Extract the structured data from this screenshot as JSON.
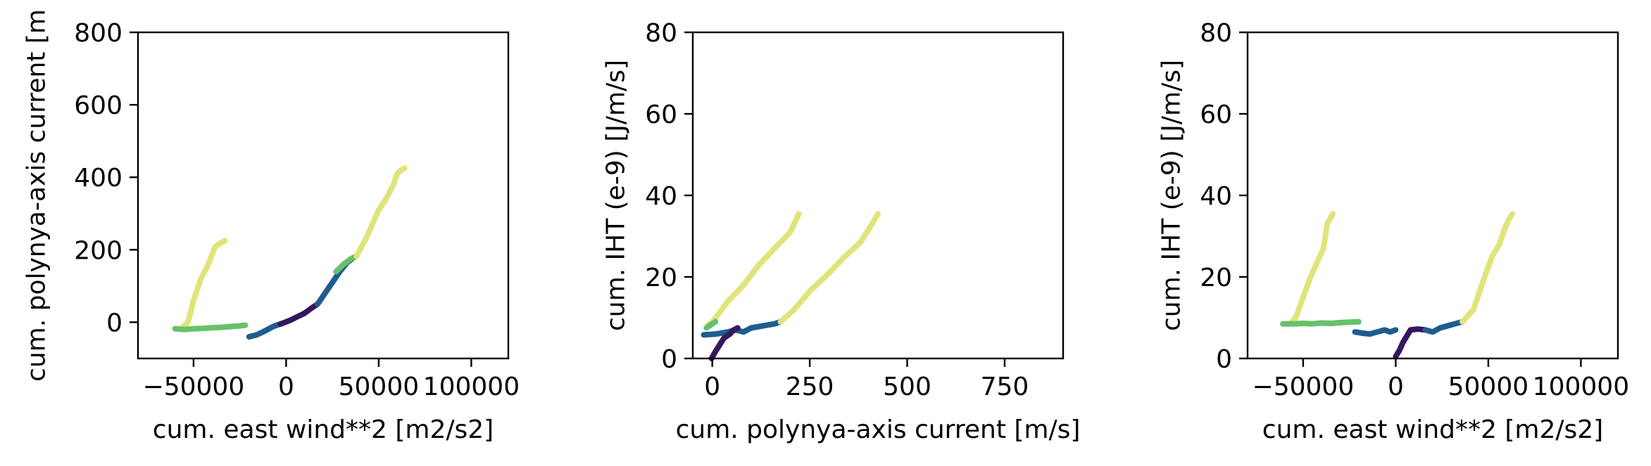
{
  "colors": {
    "dark_purple": "#35175e",
    "teal_blue": "#1f5c8f",
    "green": "#67c16a",
    "yellow": "#e1e47a"
  },
  "chart_data": [
    {
      "type": "line",
      "xlabel": "cum. east wind**2 [m2/s2]",
      "ylabel": "cum. polynya-axis current [m",
      "xlim": [
        -80000,
        120000
      ],
      "ylim": [
        -100,
        800
      ],
      "xticks": [
        -50000,
        0,
        50000,
        100000
      ],
      "xtick_labels": [
        "−50000",
        "0",
        "50000",
        "100000"
      ],
      "yticks": [
        0,
        200,
        400,
        600,
        800
      ],
      "ytick_labels": [
        "0",
        "200",
        "400",
        "600",
        "800"
      ],
      "series": [
        {
          "color": "#e1e47a",
          "x": [
            -57000,
            -53000,
            -50000,
            -46000,
            -42000,
            -39000,
            -38000,
            -35000,
            -33000
          ],
          "y": [
            -20,
            0,
            60,
            120,
            160,
            200,
            210,
            220,
            225
          ]
        },
        {
          "color": "#67c16a",
          "x": [
            -60000,
            -55000,
            -50000,
            -45000,
            -40000,
            -35000,
            -30000,
            -25000,
            -22000
          ],
          "y": [
            -18,
            -20,
            -18,
            -17,
            -15,
            -14,
            -12,
            -10,
            -8
          ]
        },
        {
          "color": "#1f5c8f",
          "x": [
            -20000,
            -16000,
            -13000,
            -10000,
            -7000,
            -5000,
            -3000
          ],
          "y": [
            -40,
            -35,
            -28,
            -20,
            -12,
            -8,
            -5
          ]
        },
        {
          "color": "#35175e",
          "x": [
            -3000,
            2000,
            6000,
            10000,
            14000,
            17000
          ],
          "y": [
            -5,
            5,
            15,
            25,
            40,
            50
          ]
        },
        {
          "color": "#1f5c8f",
          "x": [
            17000,
            21000,
            25000,
            29000,
            33000,
            37000
          ],
          "y": [
            50,
            80,
            110,
            140,
            165,
            180
          ]
        },
        {
          "color": "#67c16a",
          "x": [
            27000,
            31000,
            35000,
            38000
          ],
          "y": [
            140,
            160,
            175,
            182
          ]
        },
        {
          "color": "#e1e47a",
          "x": [
            38000,
            44000,
            50000,
            54000,
            58000,
            60000,
            62000,
            64000
          ],
          "y": [
            182,
            240,
            310,
            340,
            380,
            410,
            420,
            425
          ]
        }
      ]
    },
    {
      "type": "line",
      "xlabel": "cum. polynya-axis current [m/s]",
      "ylabel": "cum. IHT (e-9) [J/m/s]",
      "xlim": [
        -50,
        900
      ],
      "ylim": [
        0,
        80
      ],
      "xticks": [
        0,
        250,
        500,
        750
      ],
      "xtick_labels": [
        "0",
        "250",
        "500",
        "750"
      ],
      "yticks": [
        0,
        20,
        40,
        60,
        80
      ],
      "ytick_labels": [
        "0",
        "20",
        "40",
        "60",
        "80"
      ],
      "series": [
        {
          "color": "#e1e47a",
          "x": [
            -12,
            5,
            40,
            80,
            120,
            160,
            200,
            222
          ],
          "y": [
            8,
            9.5,
            14,
            18,
            23,
            27,
            31,
            35.5
          ]
        },
        {
          "color": "#67c16a",
          "x": [
            -15,
            0,
            8
          ],
          "y": [
            7.5,
            8.5,
            9
          ]
        },
        {
          "color": "#1f5c8f",
          "x": [
            -22,
            10,
            40,
            60,
            80,
            100,
            130,
            160,
            175
          ],
          "y": [
            5.8,
            6,
            6.5,
            7,
            6.5,
            7.5,
            8,
            8.5,
            9
          ]
        },
        {
          "color": "#35175e",
          "x": [
            -2,
            10,
            20,
            30,
            45,
            55,
            65
          ],
          "y": [
            0,
            2,
            3.5,
            5,
            6,
            7,
            7.5
          ]
        },
        {
          "color": "#e1e47a",
          "x": [
            175,
            210,
            250,
            300,
            340,
            380,
            410,
            425
          ],
          "y": [
            9,
            12,
            16.5,
            21,
            25,
            28.5,
            33,
            35.5
          ]
        }
      ]
    },
    {
      "type": "line",
      "xlabel": "cum. east wind**2 [m2/s2]",
      "ylabel": "cum. IHT (e-9) [J/m/s]",
      "xlim": [
        -80000,
        120000
      ],
      "ylim": [
        0,
        80
      ],
      "xticks": [
        -50000,
        0,
        50000,
        100000
      ],
      "xtick_labels": [
        "−50000",
        "0",
        "50000",
        "100000"
      ],
      "yticks": [
        0,
        20,
        40,
        60,
        80
      ],
      "ytick_labels": [
        "0",
        "20",
        "40",
        "60",
        "80"
      ],
      "series": [
        {
          "color": "#e1e47a",
          "x": [
            -57000,
            -54000,
            -50000,
            -46000,
            -42000,
            -39000,
            -37000,
            -34000
          ],
          "y": [
            8.5,
            10,
            15,
            20,
            24,
            27,
            33,
            35.5
          ]
        },
        {
          "color": "#67c16a",
          "x": [
            -61000,
            -55000,
            -50000,
            -45000,
            -40000,
            -35000,
            -30000,
            -25000,
            -20000
          ],
          "y": [
            8.5,
            8.5,
            8.6,
            8.5,
            8.7,
            8.6,
            8.8,
            8.9,
            9
          ]
        },
        {
          "color": "#1f5c8f",
          "x": [
            -22000,
            -18000,
            -14000,
            -10000,
            -6000,
            -3000,
            0
          ],
          "y": [
            6.5,
            6.2,
            6,
            6.5,
            7,
            6.5,
            7
          ]
        },
        {
          "color": "#35175e",
          "x": [
            0,
            2000,
            4000,
            6000,
            8000,
            12000,
            16000
          ],
          "y": [
            0.5,
            2,
            4,
            5.5,
            7,
            7.2,
            7
          ]
        },
        {
          "color": "#1f5c8f",
          "x": [
            16000,
            20000,
            24000,
            28000,
            32000,
            36000
          ],
          "y": [
            7,
            6.5,
            7.5,
            8,
            8.5,
            9
          ]
        },
        {
          "color": "#e1e47a",
          "x": [
            36000,
            42000,
            48000,
            52000,
            56000,
            59000,
            61000,
            63000
          ],
          "y": [
            9,
            12,
            20,
            25,
            28,
            32,
            34,
            35.5
          ]
        }
      ]
    }
  ]
}
